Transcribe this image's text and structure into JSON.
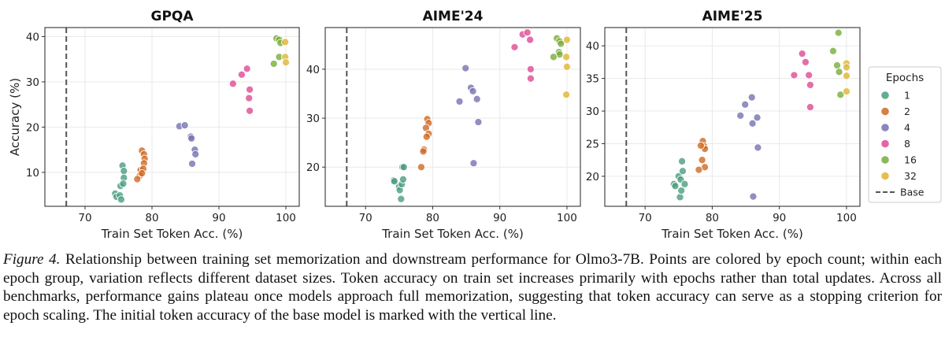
{
  "chart_data": [
    {
      "type": "scatter",
      "title": "GPQA",
      "xlabel": "Train Set Token Acc. (%)",
      "ylabel": "Accuracy (%)",
      "xlim": [
        64,
        102
      ],
      "ylim": [
        2.5,
        42
      ],
      "xticks": [
        "70",
        "80",
        "90",
        "100"
      ],
      "yticks": [
        "10",
        "20",
        "30",
        "40"
      ],
      "base_x": 67.2,
      "series": [
        {
          "name": "1",
          "points": [
            [
              74.5,
              5.3
            ],
            [
              74.7,
              4.6
            ],
            [
              75.2,
              4.9
            ],
            [
              75.4,
              4.0
            ],
            [
              75.3,
              7.0
            ],
            [
              75.6,
              11.5
            ],
            [
              75.8,
              10.3
            ],
            [
              75.8,
              8.8
            ],
            [
              75.7,
              7.5
            ]
          ]
        },
        {
          "name": "2",
          "points": [
            [
              78.5,
              14.8
            ],
            [
              78.8,
              14.0
            ],
            [
              78.9,
              13.0
            ],
            [
              78.8,
              12.0
            ],
            [
              78.3,
              10.5
            ],
            [
              78.7,
              10.8
            ],
            [
              78.2,
              9.3
            ],
            [
              77.8,
              8.5
            ],
            [
              78.5,
              9.8
            ]
          ]
        },
        {
          "name": "4",
          "points": [
            [
              84.1,
              20.2
            ],
            [
              84.9,
              20.4
            ],
            [
              85.8,
              17.9
            ],
            [
              85.9,
              17.5
            ],
            [
              86.4,
              15.0
            ],
            [
              86.5,
              14.0
            ],
            [
              86.0,
              11.9
            ]
          ]
        },
        {
          "name": "8",
          "points": [
            [
              92.1,
              29.6
            ],
            [
              93.4,
              31.6
            ],
            [
              94.2,
              32.9
            ],
            [
              94.6,
              28.3
            ],
            [
              94.5,
              26.4
            ],
            [
              94.6,
              23.6
            ]
          ]
        },
        {
          "name": "16",
          "points": [
            [
              98.6,
              39.6
            ],
            [
              99.0,
              39.3
            ],
            [
              99.2,
              38.6
            ],
            [
              99.0,
              35.5
            ],
            [
              98.2,
              34.0
            ]
          ]
        },
        {
          "name": "32",
          "points": [
            [
              99.9,
              38.8
            ],
            [
              99.9,
              35.5
            ],
            [
              100.0,
              34.3
            ]
          ]
        }
      ]
    },
    {
      "type": "scatter",
      "title": "AIME'24",
      "xlabel": "Train Set Token Acc. (%)",
      "ylabel": "",
      "xlim": [
        64,
        102
      ],
      "ylim": [
        12,
        48.5
      ],
      "xticks": [
        "70",
        "80",
        "90",
        "100"
      ],
      "yticks": [
        "20",
        "30",
        "40"
      ],
      "base_x": 67.2,
      "series": [
        {
          "name": "1",
          "points": [
            [
              74.2,
              17.3
            ],
            [
              74.3,
              17.1
            ],
            [
              75.0,
              16.0
            ],
            [
              75.1,
              15.3
            ],
            [
              75.3,
              13.5
            ],
            [
              75.4,
              16.5
            ],
            [
              75.6,
              17.5
            ],
            [
              75.5,
              20.0
            ],
            [
              75.7,
              20.0
            ]
          ]
        },
        {
          "name": "2",
          "points": [
            [
              79.2,
              29.8
            ],
            [
              79.4,
              29.0
            ],
            [
              79.0,
              28.0
            ],
            [
              79.4,
              26.8
            ],
            [
              79.1,
              26.2
            ],
            [
              78.7,
              23.6
            ],
            [
              78.6,
              23.2
            ],
            [
              78.3,
              20.0
            ]
          ]
        },
        {
          "name": "4",
          "points": [
            [
              84.0,
              33.4
            ],
            [
              84.9,
              40.2
            ],
            [
              85.7,
              36.2
            ],
            [
              86.0,
              35.5
            ],
            [
              86.6,
              33.9
            ],
            [
              86.8,
              29.2
            ],
            [
              86.1,
              20.8
            ]
          ]
        },
        {
          "name": "8",
          "points": [
            [
              92.2,
              44.5
            ],
            [
              93.4,
              47.1
            ],
            [
              94.1,
              47.5
            ],
            [
              94.5,
              46.0
            ],
            [
              94.6,
              40.0
            ],
            [
              94.6,
              38.1
            ]
          ]
        },
        {
          "name": "16",
          "points": [
            [
              98.5,
              46.3
            ],
            [
              98.9,
              45.7
            ],
            [
              99.1,
              45.2
            ],
            [
              98.8,
              43.5
            ],
            [
              98.9,
              43.0
            ],
            [
              98.0,
              42.5
            ]
          ]
        },
        {
          "name": "32",
          "points": [
            [
              100.0,
              46.0
            ],
            [
              99.9,
              42.5
            ],
            [
              100.0,
              40.5
            ],
            [
              99.9,
              34.8
            ]
          ]
        }
      ]
    },
    {
      "type": "scatter",
      "title": "AIME'25",
      "xlabel": "Train Set Token Acc. (%)",
      "ylabel": "",
      "xlim": [
        64,
        102
      ],
      "ylim": [
        15.4,
        42.8
      ],
      "xticks": [
        "70",
        "80",
        "90",
        "100"
      ],
      "yticks": [
        "20",
        "25",
        "30",
        "35",
        "40"
      ],
      "base_x": 67.2,
      "series": [
        {
          "name": "1",
          "points": [
            [
              74.3,
              18.8
            ],
            [
              74.5,
              18.5
            ],
            [
              75.0,
              20.0
            ],
            [
              75.2,
              16.8
            ],
            [
              75.4,
              17.8
            ],
            [
              75.3,
              19.5
            ],
            [
              75.5,
              22.3
            ],
            [
              75.6,
              20.8
            ],
            [
              75.9,
              18.8
            ]
          ]
        },
        {
          "name": "2",
          "points": [
            [
              78.6,
              25.4
            ],
            [
              78.8,
              24.6
            ],
            [
              78.9,
              24.2
            ],
            [
              78.3,
              24.7
            ],
            [
              78.5,
              22.5
            ],
            [
              78.9,
              21.4
            ],
            [
              78.0,
              21.0
            ]
          ]
        },
        {
          "name": "4",
          "points": [
            [
              84.2,
              29.3
            ],
            [
              84.9,
              31.0
            ],
            [
              85.9,
              32.1
            ],
            [
              86.0,
              28.1
            ],
            [
              86.7,
              29.0
            ],
            [
              86.8,
              24.4
            ],
            [
              86.1,
              16.9
            ]
          ]
        },
        {
          "name": "8",
          "points": [
            [
              92.2,
              35.5
            ],
            [
              93.4,
              38.8
            ],
            [
              93.9,
              37.5
            ],
            [
              94.4,
              35.5
            ],
            [
              94.6,
              34.0
            ],
            [
              94.6,
              30.6
            ]
          ]
        },
        {
          "name": "16",
          "points": [
            [
              98.8,
              42.0
            ],
            [
              98.0,
              39.2
            ],
            [
              98.6,
              37.0
            ],
            [
              98.9,
              36.0
            ],
            [
              99.1,
              32.5
            ]
          ]
        },
        {
          "name": "32",
          "points": [
            [
              100.0,
              37.3
            ],
            [
              100.0,
              36.7
            ],
            [
              100.0,
              35.4
            ],
            [
              100.0,
              33.0
            ]
          ]
        }
      ]
    }
  ],
  "legend": {
    "title": "Epochs",
    "position": "right",
    "entries": [
      "1",
      "2",
      "4",
      "8",
      "16",
      "32"
    ],
    "base_label": "Base"
  },
  "colors": {
    "1": "#4a9e7e",
    "2": "#cf6a23",
    "4": "#7672b3",
    "8": "#df4a93",
    "16": "#78ad3a",
    "32": "#e0b531",
    "base": "#555555",
    "grid": "#e9e9e9"
  },
  "caption": {
    "label": "Figure 4.",
    "text": " Relationship between training set memorization and downstream performance for Olmo3-7B. Points are colored by epoch count; within each epoch group, variation reflects different dataset sizes. Token accuracy on train set increases primarily with epochs rather than total updates. Across all benchmarks, performance gains plateau once models approach full memorization, suggesting that token accuracy can serve as a stopping criterion for epoch scaling. The initial token accuracy of the base model is marked with the vertical line."
  }
}
